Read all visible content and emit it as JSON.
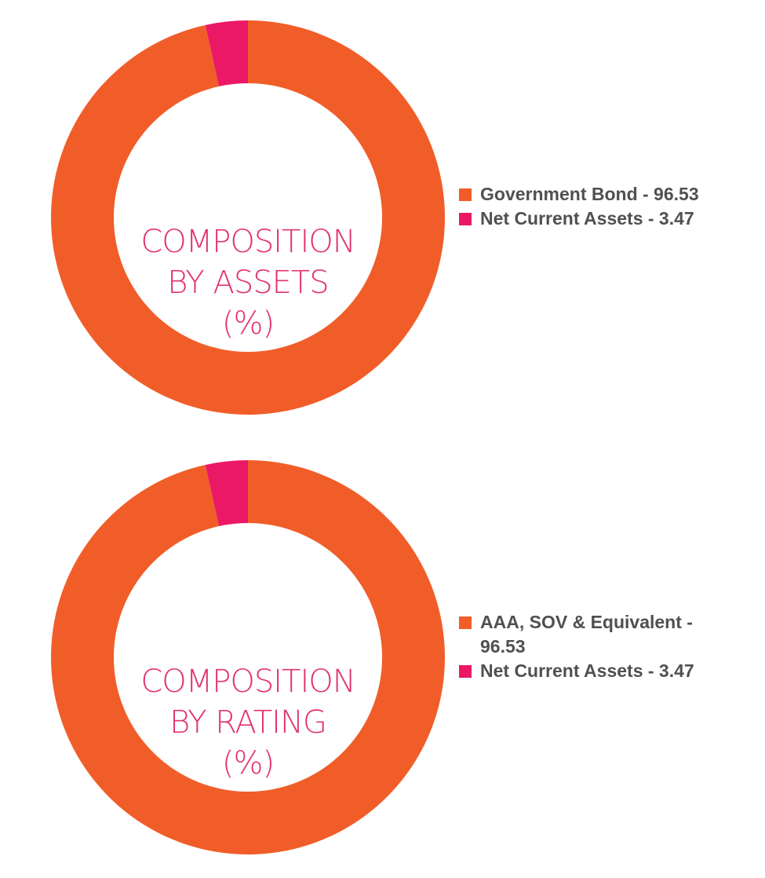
{
  "chart_data": [
    {
      "type": "pie",
      "donut": true,
      "title": "COMPOSITION BY ASSETS (%)",
      "title_lines": [
        "COMPOSITION",
        "BY ASSETS",
        "(%)"
      ],
      "categories": [
        "Government Bond",
        "Net Current Assets"
      ],
      "values": [
        96.53,
        3.47
      ],
      "legend_labels": [
        "Government Bond - 96.53",
        "Net Current Assets - 3.47"
      ],
      "colors": [
        "#F15D28",
        "#EB1865"
      ],
      "legend": "right"
    },
    {
      "type": "pie",
      "donut": true,
      "title": "COMPOSITION BY RATING (%)",
      "title_lines": [
        "COMPOSITION",
        "BY RATING",
        "(%)"
      ],
      "categories": [
        "AAA, SOV & Equivalent",
        "Net Current Assets"
      ],
      "values": [
        96.53,
        3.47
      ],
      "legend_labels": [
        "AAA, SOV & Equivalent - 96.53",
        "Net Current Assets - 3.47"
      ],
      "colors": [
        "#F15D28",
        "#EB1865"
      ],
      "legend": "right"
    }
  ]
}
